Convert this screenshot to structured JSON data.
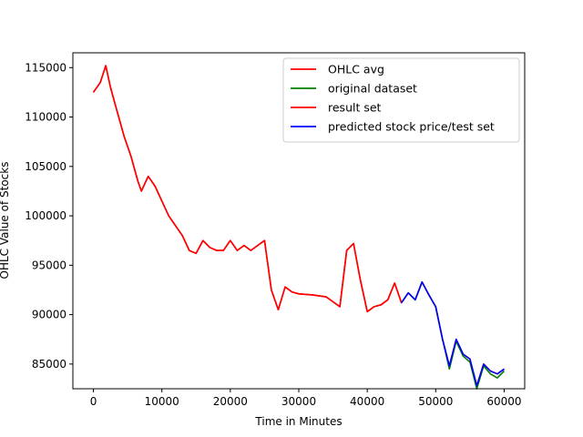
{
  "chart_data": {
    "type": "line",
    "title": "",
    "xlabel": "Time in Minutes",
    "ylabel": "OHLC Value of Stocks",
    "xlim": [
      -3000,
      63000
    ],
    "ylim": [
      82500,
      116500
    ],
    "xticks": [
      0,
      10000,
      20000,
      30000,
      40000,
      50000,
      60000
    ],
    "yticks": [
      85000,
      90000,
      95000,
      100000,
      105000,
      110000,
      115000
    ],
    "grid": false,
    "legend_position": "top-right",
    "series": [
      {
        "name": "OHLC avg",
        "color": "#ff0000",
        "x": [
          0,
          1000,
          1800,
          2500,
          3500,
          4500,
          5500,
          6500,
          7000,
          8000,
          9000,
          10000,
          11000,
          12000,
          13000,
          14000,
          15000,
          16000,
          17000,
          18000,
          19000,
          20000,
          21000,
          22000,
          23000,
          24000,
          25000,
          26000,
          27000,
          28000,
          29000,
          30000,
          32000,
          34000,
          36000,
          37000,
          38000,
          39000,
          40000,
          41000,
          42000,
          43000,
          44000,
          45000,
          46000,
          47000,
          48000,
          49000,
          50000,
          51000,
          52000,
          53000,
          54000,
          55000,
          56000,
          57000,
          58000,
          59000,
          60000
        ],
        "y": [
          112500,
          113500,
          115200,
          113000,
          110500,
          108000,
          106000,
          103500,
          102500,
          104000,
          103000,
          101500,
          100000,
          99000,
          98000,
          96500,
          96200,
          97500,
          96800,
          96500,
          96500,
          97500,
          96500,
          97000,
          96500,
          97000,
          97500,
          92500,
          90500,
          92800,
          92300,
          92100,
          92000,
          91800,
          90800,
          96500,
          97200,
          93500,
          90300,
          90800,
          91000,
          91500,
          93200,
          91200,
          92200,
          91500,
          93300,
          92000,
          90800,
          87500,
          84800,
          87500,
          86000,
          85500,
          82800,
          85000,
          84300,
          84000,
          84500
        ]
      },
      {
        "name": "original dataset",
        "color": "#008000",
        "x": [
          45000,
          46000,
          47000,
          48000,
          49000,
          50000,
          51000,
          52000,
          53000,
          54000,
          55000,
          56000,
          57000,
          58000,
          59000,
          60000
        ],
        "y": [
          91200,
          92200,
          91500,
          93300,
          92000,
          90800,
          87500,
          84500,
          87300,
          85800,
          85200,
          82500,
          84800,
          84000,
          83600,
          84300
        ]
      },
      {
        "name": "result set",
        "color": "#ff0000",
        "x": [
          0,
          1000,
          1800,
          2500,
          3500,
          4500,
          5500,
          6500,
          7000,
          8000,
          9000,
          10000,
          11000,
          12000,
          13000,
          14000,
          15000,
          16000,
          17000,
          18000,
          19000,
          20000,
          21000,
          22000,
          23000,
          24000,
          25000,
          26000,
          27000,
          28000,
          29000,
          30000,
          32000,
          34000,
          36000,
          37000,
          38000,
          39000,
          40000,
          41000,
          42000,
          43000,
          44000,
          45000
        ],
        "y": [
          112500,
          113500,
          115200,
          113000,
          110500,
          108000,
          106000,
          103500,
          102500,
          104000,
          103000,
          101500,
          100000,
          99000,
          98000,
          96500,
          96200,
          97500,
          96800,
          96500,
          96500,
          97500,
          96500,
          97000,
          96500,
          97000,
          97500,
          92500,
          90500,
          92800,
          92300,
          92100,
          92000,
          91800,
          90800,
          96500,
          97200,
          93500,
          90300,
          90800,
          91000,
          91500,
          93200,
          91200
        ]
      },
      {
        "name": "predicted stock price/test set",
        "color": "#0000ff",
        "x": [
          45000,
          46000,
          47000,
          48000,
          49000,
          50000,
          51000,
          52000,
          53000,
          54000,
          55000,
          56000,
          57000,
          58000,
          59000,
          60000
        ],
        "y": [
          91200,
          92200,
          91500,
          93300,
          92000,
          90800,
          87500,
          84800,
          87500,
          86000,
          85500,
          82800,
          85000,
          84300,
          84000,
          84500
        ]
      }
    ]
  }
}
